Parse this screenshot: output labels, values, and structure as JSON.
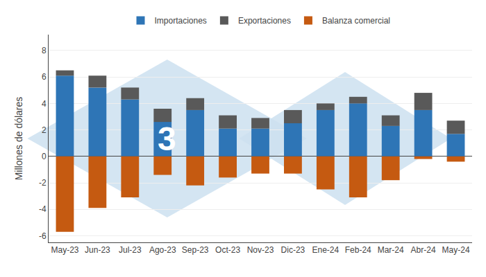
{
  "chart_data": {
    "type": "bar",
    "stacked": true,
    "categories": [
      "May-23",
      "Jun-23",
      "Jul-23",
      "Ago-23",
      "Sep-23",
      "Oct-23",
      "Nov-23",
      "Dic-23",
      "Ene-24",
      "Feb-24",
      "Mar-24",
      "Abr-24",
      "May-24"
    ],
    "series": [
      {
        "name": "Importaciones",
        "color": "#2e75b6",
        "values": [
          6.1,
          5.2,
          4.3,
          2.6,
          3.5,
          2.1,
          2.1,
          2.5,
          3.5,
          4.0,
          2.3,
          3.5,
          1.7
        ]
      },
      {
        "name": "Exportaciones",
        "color": "#595959",
        "values": [
          0.4,
          0.9,
          0.9,
          1.0,
          0.9,
          1.0,
          0.8,
          1.0,
          0.5,
          0.5,
          0.8,
          1.3,
          1.0
        ]
      },
      {
        "name": "Balanza comercial",
        "color": "#c55a11",
        "values": [
          -5.7,
          -3.9,
          -3.1,
          -1.4,
          -2.2,
          -1.6,
          -1.3,
          -1.3,
          -2.5,
          -3.1,
          -1.8,
          -0.2,
          -0.4
        ]
      }
    ],
    "ylabel": "Millones de dólares",
    "ylim": [
      -6.5,
      9.2
    ],
    "yticks": [
      -6,
      -4,
      -2,
      0,
      2,
      4,
      6,
      8
    ],
    "grid": true,
    "legend": "top",
    "annotations": [
      {
        "text": "3",
        "color": "#cce0f0"
      }
    ]
  }
}
